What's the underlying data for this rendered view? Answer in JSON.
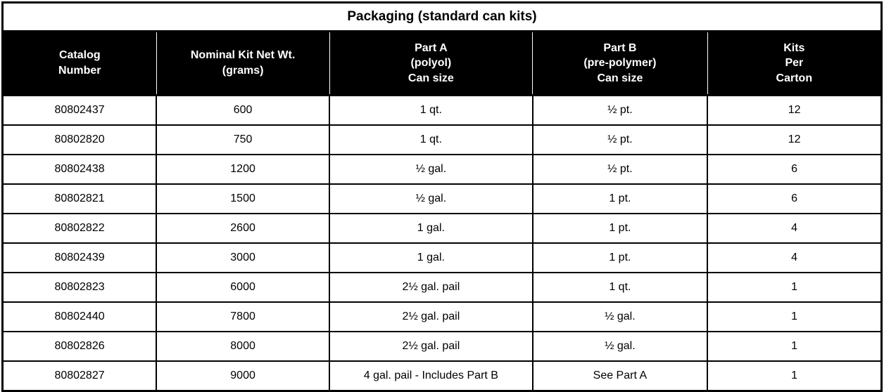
{
  "title": "Packaging (standard can kits)",
  "table": {
    "columns": [
      {
        "label": "Catalog\nNumber"
      },
      {
        "label": "Nominal Kit Net Wt.\n(grams)"
      },
      {
        "label": "Part A\n(polyol)\nCan size"
      },
      {
        "label": "Part B\n(pre-polymer)\nCan size"
      },
      {
        "label": "Kits\nPer\nCarton"
      }
    ],
    "rows": [
      [
        "80802437",
        "600",
        "1 qt.",
        "½ pt.",
        "12"
      ],
      [
        "80802820",
        "750",
        "1 qt.",
        "½ pt.",
        "12"
      ],
      [
        "80802438",
        "1200",
        "½ gal.",
        "½ pt.",
        "6"
      ],
      [
        "80802821",
        "1500",
        "½ gal.",
        "1 pt.",
        "6"
      ],
      [
        "80802822",
        "2600",
        "1 gal.",
        "1 pt.",
        "4"
      ],
      [
        "80802439",
        "3000",
        "1 gal.",
        "1 pt.",
        "4"
      ],
      [
        "80802823",
        "6000",
        "2½ gal. pail",
        "1 qt.",
        "1"
      ],
      [
        "80802440",
        "7800",
        "2½ gal. pail",
        "½ gal.",
        "1"
      ],
      [
        "80802826",
        "8000",
        "2½ gal. pail",
        "½ gal.",
        "1"
      ],
      [
        "80802827",
        "9000",
        "4 gal. pail - Includes Part B",
        "See Part A",
        "1"
      ]
    ]
  },
  "colors": {
    "header_bg": "#000000",
    "header_text": "#ffffff",
    "body_bg": "#ffffff",
    "body_text": "#000000",
    "border": "#000000"
  }
}
